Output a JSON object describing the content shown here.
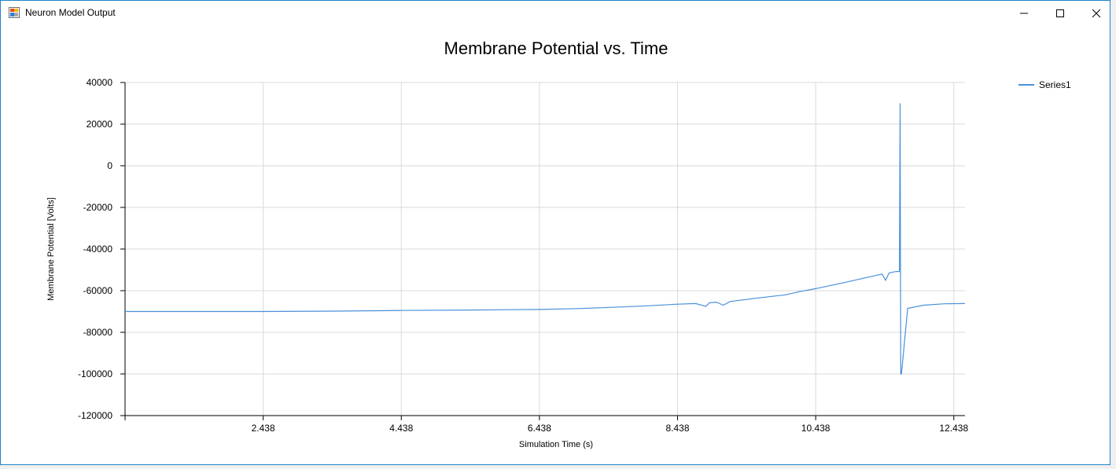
{
  "window": {
    "title": "Neuron Model Output",
    "controls": [
      "minimize-icon",
      "maximize-icon",
      "close-icon"
    ]
  },
  "chart_data": {
    "type": "line",
    "title": "Membrane Potential vs. Time",
    "xlabel": "Simulation Time (s)",
    "ylabel": "Membrane Potential [Volts]",
    "x_ticks": [
      "2.438",
      "4.438",
      "6.438",
      "8.438",
      "10.438",
      "12.438"
    ],
    "y_ticks": [
      "40000",
      "20000",
      "0",
      "-20000",
      "-40000",
      "-60000",
      "-80000",
      "-100000",
      "-120000"
    ],
    "xlim": [
      0.438,
      12.6
    ],
    "ylim": [
      -120000,
      40000
    ],
    "grid": true,
    "legend": "top-right",
    "color": "#4a90d9",
    "series": [
      {
        "name": "Series1",
        "x": [
          0.438,
          1.5,
          2.438,
          3.5,
          4.438,
          5.5,
          6.438,
          7.0,
          7.5,
          8.0,
          8.438,
          8.7,
          8.85,
          8.9,
          9.0,
          9.1,
          9.2,
          9.3,
          9.6,
          10.0,
          10.2,
          10.438,
          10.8,
          11.2,
          11.4,
          11.45,
          11.5,
          11.6,
          11.65,
          11.66,
          11.67,
          11.68,
          11.77,
          12.0,
          12.3,
          12.6
        ],
        "values": [
          -70000,
          -70000,
          -70000,
          -69800,
          -69500,
          -69300,
          -69000,
          -68600,
          -68000,
          -67300,
          -66500,
          -66200,
          -67500,
          -65800,
          -65500,
          -67000,
          -65200,
          -64800,
          -63500,
          -62000,
          -60500,
          -59000,
          -56500,
          -53500,
          -52000,
          -55000,
          -51500,
          -50800,
          -50800,
          30000,
          -100000,
          -100000,
          -68500,
          -67000,
          -66300,
          -66200
        ]
      }
    ]
  }
}
